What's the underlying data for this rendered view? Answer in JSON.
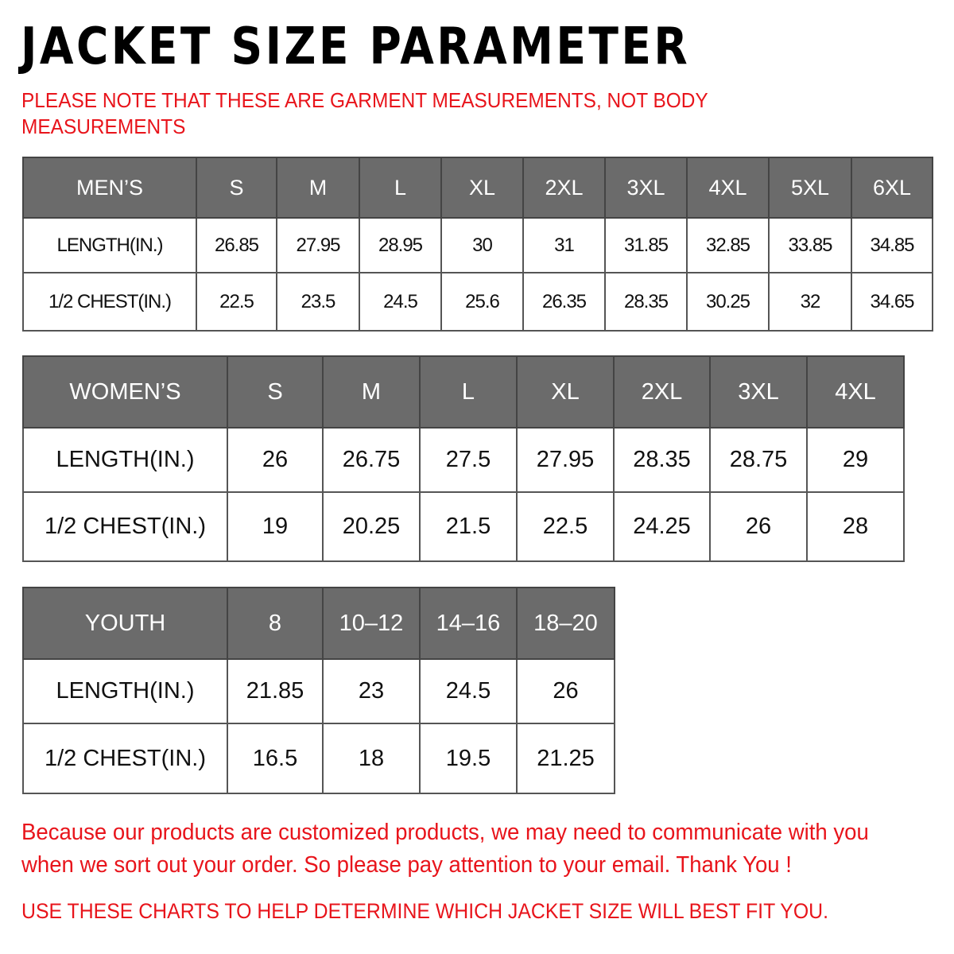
{
  "title": "JACKET SIZE PARAMETER",
  "note": "PLEASE NOTE THAT THESE ARE GARMENT MEASUREMENTS, NOT BODY MEASUREMENTS",
  "colors": {
    "header_bg": "#6b6b6b",
    "accent_red": "#e8141b"
  },
  "tables": {
    "men": {
      "header": [
        "MEN’S",
        "S",
        "M",
        "L",
        "XL",
        "2XL",
        "3XL",
        "4XL",
        "5XL",
        "6XL"
      ],
      "rows": [
        [
          "LENGTH(IN.)",
          "26.85",
          "27.95",
          "28.95",
          "30",
          "31",
          "31.85",
          "32.85",
          "33.85",
          "34.85"
        ],
        [
          "1/2 CHEST(IN.)",
          "22.5",
          "23.5",
          "24.5",
          "25.6",
          "26.35",
          "28.35",
          "30.25",
          "32",
          "34.65"
        ]
      ]
    },
    "women": {
      "header": [
        "WOMEN’S",
        "S",
        "M",
        "L",
        "XL",
        "2XL",
        "3XL",
        "4XL"
      ],
      "rows": [
        [
          "LENGTH(IN.)",
          "26",
          "26.75",
          "27.5",
          "27.95",
          "28.35",
          "28.75",
          "29"
        ],
        [
          "1/2 CHEST(IN.)",
          "19",
          "20.25",
          "21.5",
          "22.5",
          "24.25",
          "26",
          "28"
        ]
      ]
    },
    "youth": {
      "header": [
        "YOUTH",
        "8",
        "10–12",
        "14–16",
        "18–20"
      ],
      "rows": [
        [
          "LENGTH(IN.)",
          "21.85",
          "23",
          "24.5",
          "26"
        ],
        [
          "1/2 CHEST(IN.)",
          "16.5",
          "18",
          "19.5",
          "21.25"
        ]
      ]
    }
  },
  "footer": {
    "message": "Because our products are customized products, we may need to communicate with you when we sort out your order. So please pay attention to your email. Thank You !",
    "advice": "USE THESE CHARTS TO HELP DETERMINE WHICH JACKET SIZE WILL BEST FIT YOU."
  }
}
